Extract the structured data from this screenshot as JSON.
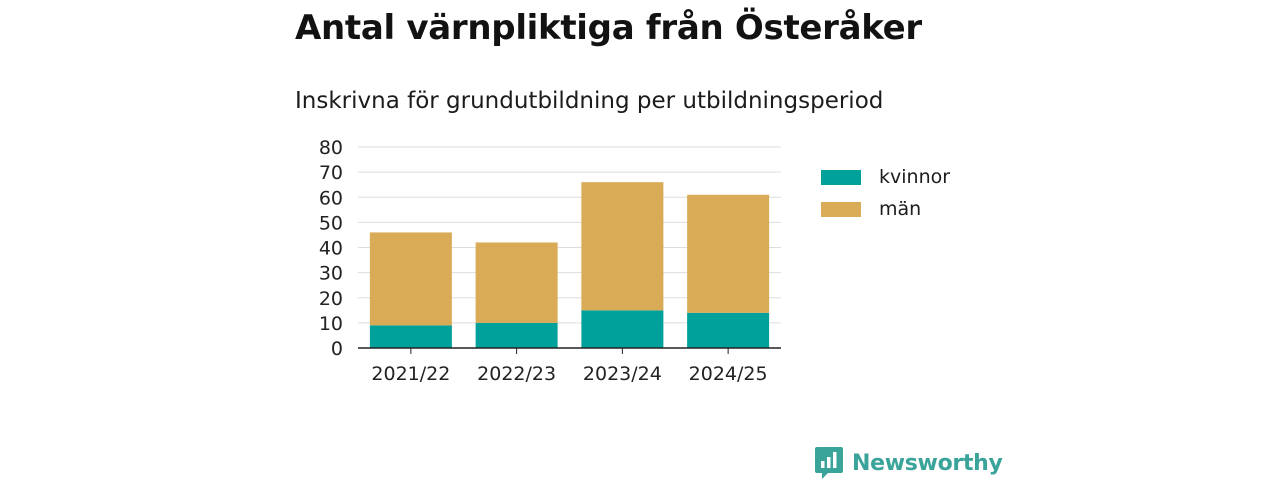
{
  "colors": {
    "kvinnor": "#00a19a",
    "man": "#d9ab57",
    "grid": "#dddddd",
    "axis": "#222222",
    "brand": "#3aa39a"
  },
  "chart_data": {
    "type": "bar",
    "stacked": true,
    "title": "Antal värnpliktiga från Österåker",
    "subtitle": "Inskrivna för grundutbildning per utbildningsperiod",
    "categories": [
      "2021/22",
      "2022/23",
      "2023/24",
      "2024/25"
    ],
    "series": [
      {
        "name": "kvinnor",
        "values": [
          9,
          10,
          15,
          14
        ]
      },
      {
        "name": "män",
        "values": [
          37,
          32,
          51,
          47
        ]
      }
    ],
    "ylim": [
      0,
      80
    ],
    "yticks": [
      0,
      10,
      20,
      30,
      40,
      50,
      60,
      70,
      80
    ],
    "grid": true,
    "legend_position": "right"
  },
  "brand": {
    "name": "Newsworthy",
    "icon": "newsworthy-logo-icon"
  }
}
